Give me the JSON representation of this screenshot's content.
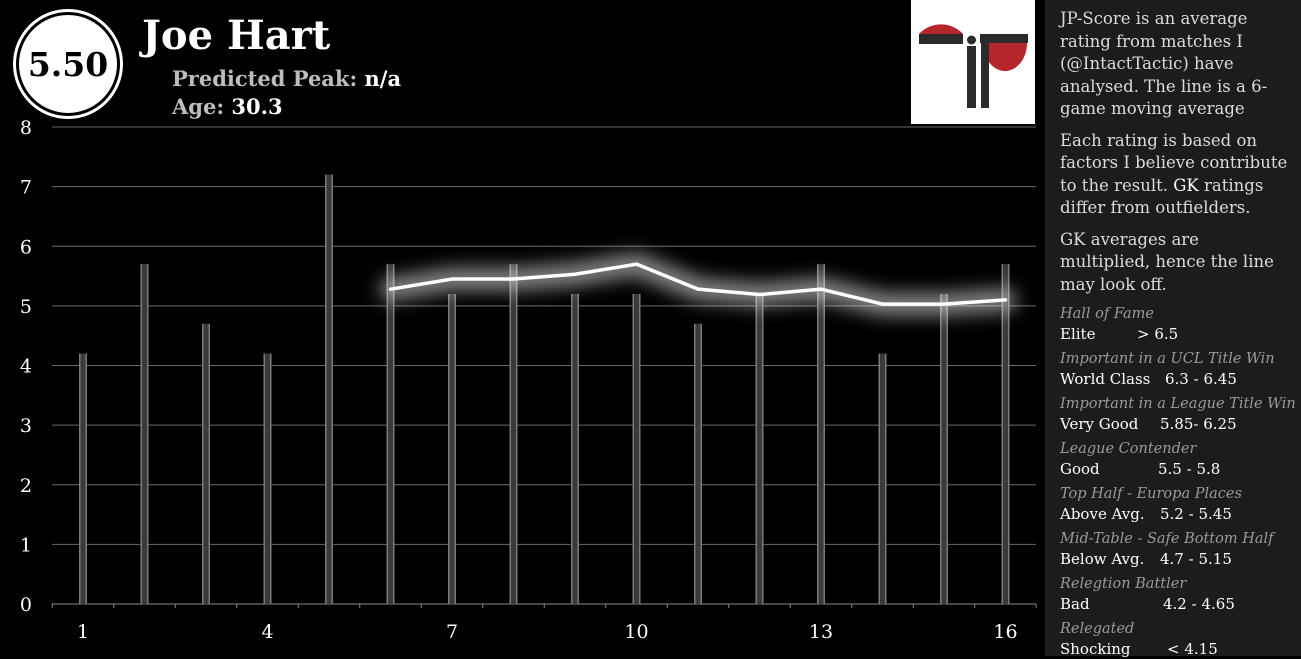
{
  "header": {
    "score": "5.50",
    "name": "Joe Hart",
    "peak_label": "Predicted Peak:",
    "peak_value": "n/a",
    "age_label": "Age:",
    "age_value": "30.3"
  },
  "sidebar": {
    "desc1": "JP-Score is an average rating from matches I (@IntactTactic) have analysed. The line is a 6-game moving average",
    "desc2a": "Each rating is based on factors I believe contribute to the result.",
    "desc2b": "GK",
    "desc2c": "ratings differ from outfielders.",
    "desc3": "GK averages are multiplied, hence the line may look off.",
    "tiers": [
      {
        "category": "Hall of Fame",
        "label": "Elite",
        "range": "> 6.5"
      },
      {
        "category": "Important in a UCL Title Win",
        "label": "World Class",
        "range": "6.3 - 6.45"
      },
      {
        "category": "Important in a League Title Win",
        "label": "Very Good",
        "range": "5.85- 6.25"
      },
      {
        "category": "League Contender",
        "label": "Good",
        "range": "5.5 - 5.8"
      },
      {
        "category": "Top Half - Europa Places",
        "label": "Above Avg.",
        "range": "5.2 - 5.45"
      },
      {
        "category": "Mid-Table - Safe Bottom Half",
        "label": "Below Avg.",
        "range": "4.7 - 5.15"
      },
      {
        "category": "Relegtion Battler",
        "label": "Bad",
        "range": "4.2 - 4.65"
      },
      {
        "category": "Relegated",
        "label": "Shocking",
        "range": "< 4.15"
      }
    ]
  },
  "logo": {
    "colors": {
      "red": "#b5262a",
      "dark": "#2b2b2b",
      "bg": "#ffffff"
    }
  },
  "chart_data": {
    "type": "bar",
    "x": [
      1,
      2,
      3,
      4,
      5,
      6,
      7,
      8,
      9,
      10,
      11,
      12,
      13,
      14,
      15,
      16
    ],
    "x_tick_labels": [
      "1",
      "4",
      "7",
      "10",
      "13",
      "16"
    ],
    "x_tick_values": [
      1,
      4,
      7,
      10,
      13,
      16
    ],
    "ylim": [
      0,
      8
    ],
    "y_ticks": [
      "0",
      "1",
      "2",
      "3",
      "4",
      "5",
      "6",
      "7",
      "8"
    ],
    "grid": true,
    "series": [
      {
        "type": "bar",
        "values": [
          4.2,
          5.7,
          4.7,
          4.2,
          7.2,
          5.7,
          5.2,
          5.7,
          5.2,
          5.2,
          4.7,
          5.2,
          5.7,
          4.2,
          5.2,
          5.7
        ]
      },
      {
        "type": "line",
        "x": [
          6,
          7,
          8,
          9,
          10,
          11,
          12,
          13,
          14,
          15,
          16
        ],
        "values": [
          5.28,
          5.45,
          5.45,
          5.53,
          5.7,
          5.28,
          5.19,
          5.28,
          5.03,
          5.03,
          5.1
        ]
      }
    ]
  }
}
